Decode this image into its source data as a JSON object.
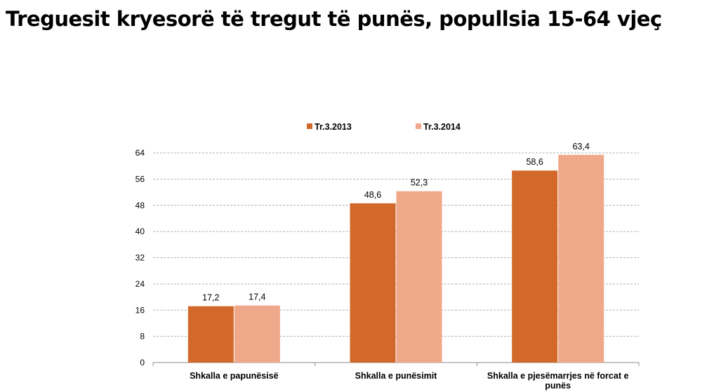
{
  "title": "Treguesit kryesorë të tregut të punës, popullsia 15-64 vjeç",
  "chart_data": {
    "type": "bar",
    "categories": [
      [
        "Shkalla e papunësisë"
      ],
      [
        "Shkalla e punësimit"
      ],
      [
        "Shkalla e pjesëmarrjes në forcat e",
        "punës"
      ]
    ],
    "series": [
      {
        "name": "Tr.3.2013",
        "color": "#D2692A",
        "values": [
          17.2,
          48.6,
          58.6
        ],
        "labels": [
          "17,2",
          "48,6",
          "58,6"
        ]
      },
      {
        "name": "Tr.3.2014",
        "color": "#F0A88A",
        "values": [
          17.4,
          52.3,
          63.4
        ],
        "labels": [
          "17,4",
          "52,3",
          "63,4"
        ]
      }
    ],
    "yticks": [
      "0",
      "8",
      "16",
      "24",
      "32",
      "40",
      "48",
      "56",
      "64"
    ],
    "ylim": [
      0,
      64
    ],
    "grid": true,
    "legend_position": "top"
  }
}
